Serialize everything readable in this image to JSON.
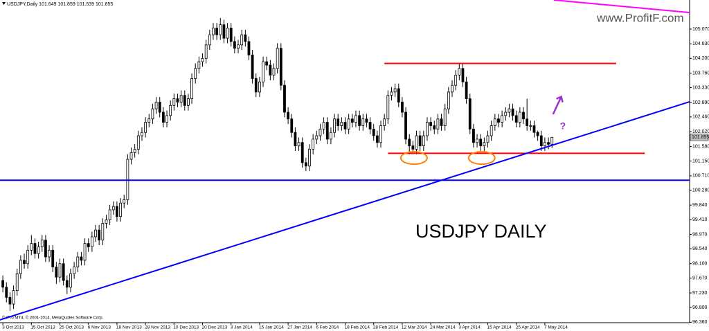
{
  "chart_data": {
    "type": "candlestick",
    "header": "USDJPY,Daily",
    "title": "USDJPY  DAILY",
    "watermark": "www.ProfitF.com",
    "copyright": "© iPro MT4, © 2001-2014, MetaQuotes Software Corp.",
    "annotation": "?",
    "ylim": [
      96.346,
      105.934
    ],
    "xlim": [
      -0.8,
      192.6
    ],
    "yticks": [
      {
        "value": 105.07,
        "label": "105.070"
      },
      {
        "value": 104.63,
        "label": "104.630"
      },
      {
        "value": 104.2,
        "label": "104.200"
      },
      {
        "value": 103.76,
        "label": "103.760"
      },
      {
        "value": 103.33,
        "label": "103.330"
      },
      {
        "value": 102.89,
        "label": "102.890"
      },
      {
        "value": 102.46,
        "label": "102.460"
      },
      {
        "value": 102.02,
        "label": "102.020"
      },
      {
        "value": 101.58,
        "label": "101.580"
      },
      {
        "value": 101.15,
        "label": "101.150"
      },
      {
        "value": 100.71,
        "label": "100.710"
      },
      {
        "value": 100.28,
        "label": "100.280"
      },
      {
        "value": 99.84,
        "label": "99.840"
      },
      {
        "value": 99.41,
        "label": "99.410"
      },
      {
        "value": 98.97,
        "label": "98.970"
      },
      {
        "value": 98.54,
        "label": "98.540"
      },
      {
        "value": 98.1,
        "label": "98.100"
      },
      {
        "value": 97.67,
        "label": "97.670"
      },
      {
        "value": 97.23,
        "label": "97.230"
      },
      {
        "value": 96.8,
        "label": "96.800"
      },
      {
        "value": 96.36,
        "label": "96.360"
      }
    ],
    "categories": [
      "3 Oct 2013",
      null,
      null,
      null,
      null,
      null,
      null,
      null,
      "15 Oct 2013",
      null,
      null,
      null,
      null,
      null,
      null,
      null,
      "25 Oct 2013",
      null,
      null,
      null,
      null,
      null,
      null,
      null,
      "6 Nov 2013",
      null,
      null,
      null,
      null,
      null,
      null,
      null,
      "18 Nov 2013",
      null,
      null,
      null,
      null,
      null,
      null,
      null,
      "28 Nov 2013",
      null,
      null,
      null,
      null,
      null,
      null,
      null,
      "10 Dec 2013",
      null,
      null,
      null,
      null,
      null,
      null,
      null,
      "20 Dec 2013",
      null,
      null,
      null,
      null,
      null,
      null,
      null,
      "3 Jan 2014",
      null,
      null,
      null,
      null,
      null,
      null,
      null,
      "15 Jan 2014",
      null,
      null,
      null,
      null,
      null,
      null,
      null,
      "27 Jan 2014",
      null,
      null,
      null,
      null,
      null,
      null,
      null,
      "6 Feb 2014",
      null,
      null,
      null,
      null,
      null,
      null,
      null,
      "18 Feb 2014",
      null,
      null,
      null,
      null,
      null,
      null,
      null,
      "28 Feb 2014",
      null,
      null,
      null,
      null,
      null,
      null,
      null,
      "12 Mar 2014",
      null,
      null,
      null,
      null,
      null,
      null,
      null,
      "24 Mar 2014",
      null,
      null,
      null,
      null,
      null,
      null,
      null,
      "3 Apr 2014",
      null,
      null,
      null,
      null,
      null,
      null,
      null,
      "15 Apr 2014",
      null,
      null,
      null,
      null,
      null,
      null,
      null,
      "25 Apr 2014",
      null,
      null,
      null,
      null,
      null,
      null,
      null,
      "7 May 2014",
      null,
      null
    ],
    "candles": [
      [
        97.6,
        97.75,
        97.25,
        97.4
      ],
      [
        97.4,
        97.55,
        96.95,
        97.1
      ],
      [
        97.1,
        97.25,
        96.7,
        96.9
      ],
      [
        96.9,
        97.45,
        96.75,
        97.3
      ],
      [
        97.3,
        97.95,
        97.15,
        97.8
      ],
      [
        97.8,
        98.35,
        97.65,
        98.2
      ],
      [
        98.2,
        98.4,
        97.95,
        98.1
      ],
      [
        98.1,
        98.65,
        97.95,
        98.5
      ],
      [
        98.5,
        98.95,
        98.35,
        98.7
      ],
      [
        98.7,
        98.85,
        98.25,
        98.4
      ],
      [
        98.4,
        98.75,
        98.25,
        98.6
      ],
      [
        98.6,
        98.95,
        98.45,
        98.8
      ],
      [
        98.8,
        98.95,
        98.15,
        98.3
      ],
      [
        98.3,
        98.65,
        98.15,
        98.5
      ],
      [
        98.5,
        98.65,
        97.85,
        98.0
      ],
      [
        98.0,
        98.15,
        97.5,
        97.7
      ],
      [
        97.7,
        98.25,
        97.55,
        98.1
      ],
      [
        98.1,
        98.25,
        97.45,
        97.6
      ],
      [
        97.6,
        97.75,
        97.2,
        97.4
      ],
      [
        97.4,
        97.95,
        97.25,
        97.8
      ],
      [
        97.8,
        98.15,
        97.65,
        98.0
      ],
      [
        98.0,
        98.45,
        97.85,
        98.3
      ],
      [
        98.3,
        98.45,
        98.05,
        98.2
      ],
      [
        98.2,
        98.85,
        98.05,
        98.7
      ],
      [
        98.7,
        98.85,
        98.45,
        98.6
      ],
      [
        98.6,
        99.05,
        98.45,
        98.9
      ],
      [
        98.9,
        99.25,
        98.75,
        99.1
      ],
      [
        99.1,
        99.25,
        98.65,
        98.8
      ],
      [
        98.8,
        99.45,
        98.65,
        99.3
      ],
      [
        99.3,
        99.55,
        99.15,
        99.4
      ],
      [
        99.4,
        99.85,
        99.25,
        99.7
      ],
      [
        99.7,
        99.95,
        99.55,
        99.8
      ],
      [
        99.8,
        99.95,
        99.35,
        99.5
      ],
      [
        99.5,
        100.05,
        99.35,
        99.9
      ],
      [
        99.9,
        100.15,
        99.75,
        100.0
      ],
      [
        100.0,
        101.35,
        99.85,
        101.2
      ],
      [
        101.2,
        101.55,
        101.05,
        101.4
      ],
      [
        101.4,
        101.65,
        101.25,
        101.5
      ],
      [
        101.5,
        102.05,
        101.35,
        101.9
      ],
      [
        101.9,
        102.15,
        101.75,
        102.0
      ],
      [
        102.0,
        102.45,
        101.85,
        102.3
      ],
      [
        102.3,
        102.55,
        102.15,
        102.4
      ],
      [
        102.4,
        102.85,
        102.25,
        102.7
      ],
      [
        102.7,
        103.05,
        102.55,
        102.9
      ],
      [
        102.9,
        103.05,
        102.45,
        102.6
      ],
      [
        102.6,
        102.75,
        102.15,
        102.3
      ],
      [
        102.3,
        102.65,
        102.15,
        102.5
      ],
      [
        102.5,
        102.95,
        102.35,
        102.8
      ],
      [
        102.8,
        103.15,
        102.65,
        103.0
      ],
      [
        103.0,
        103.15,
        102.75,
        102.9
      ],
      [
        102.9,
        103.25,
        102.75,
        103.1
      ],
      [
        103.1,
        103.25,
        102.65,
        102.8
      ],
      [
        102.8,
        103.15,
        102.65,
        103.0
      ],
      [
        103.0,
        103.75,
        102.85,
        103.6
      ],
      [
        103.6,
        104.05,
        103.45,
        103.9
      ],
      [
        103.9,
        104.25,
        103.75,
        104.1
      ],
      [
        104.1,
        104.35,
        103.95,
        104.2
      ],
      [
        104.2,
        104.75,
        104.05,
        104.6
      ],
      [
        104.6,
        105.05,
        104.45,
        104.9
      ],
      [
        104.9,
        105.25,
        104.75,
        105.1
      ],
      [
        105.1,
        105.25,
        104.75,
        104.9
      ],
      [
        104.9,
        105.4,
        104.75,
        105.2
      ],
      [
        105.2,
        105.35,
        104.65,
        104.8
      ],
      [
        104.8,
        105.25,
        104.65,
        105.1
      ],
      [
        105.1,
        105.25,
        104.55,
        104.7
      ],
      [
        104.7,
        104.85,
        104.35,
        104.5
      ],
      [
        104.5,
        104.75,
        104.35,
        104.6
      ],
      [
        104.6,
        105.05,
        104.45,
        104.9
      ],
      [
        104.9,
        105.05,
        104.55,
        104.7
      ],
      [
        104.7,
        104.85,
        104.15,
        104.3
      ],
      [
        104.3,
        104.45,
        103.45,
        103.6
      ],
      [
        103.6,
        103.75,
        103.05,
        103.2
      ],
      [
        103.2,
        103.65,
        103.05,
        103.5
      ],
      [
        103.5,
        104.25,
        103.35,
        104.1
      ],
      [
        104.1,
        104.25,
        103.85,
        104.0
      ],
      [
        104.0,
        104.15,
        103.55,
        103.7
      ],
      [
        103.7,
        104.05,
        103.55,
        103.9
      ],
      [
        103.9,
        104.65,
        103.75,
        104.5
      ],
      [
        104.5,
        104.65,
        103.25,
        103.4
      ],
      [
        103.4,
        103.55,
        102.45,
        102.6
      ],
      [
        102.6,
        102.75,
        102.25,
        102.4
      ],
      [
        102.4,
        102.55,
        101.85,
        102.0
      ],
      [
        102.0,
        102.15,
        101.45,
        101.6
      ],
      [
        101.6,
        101.85,
        101.45,
        101.7
      ],
      [
        101.7,
        101.85,
        100.95,
        101.1
      ],
      [
        101.1,
        101.25,
        100.85,
        101.0
      ],
      [
        101.0,
        101.65,
        100.85,
        101.5
      ],
      [
        101.5,
        101.95,
        101.35,
        101.8
      ],
      [
        101.8,
        102.05,
        101.65,
        101.9
      ],
      [
        101.9,
        102.25,
        101.75,
        102.1
      ],
      [
        102.1,
        102.45,
        101.95,
        102.3
      ],
      [
        102.3,
        102.45,
        101.65,
        101.8
      ],
      [
        101.8,
        102.15,
        101.65,
        102.0
      ],
      [
        102.0,
        102.55,
        101.85,
        102.4
      ],
      [
        102.4,
        102.55,
        102.05,
        102.2
      ],
      [
        102.2,
        102.45,
        102.05,
        102.3
      ],
      [
        102.3,
        102.45,
        101.95,
        102.1
      ],
      [
        102.1,
        102.55,
        101.95,
        102.4
      ],
      [
        102.4,
        102.55,
        102.15,
        102.3
      ],
      [
        102.3,
        102.65,
        102.15,
        102.5
      ],
      [
        102.5,
        102.65,
        102.05,
        102.2
      ],
      [
        102.2,
        102.55,
        102.05,
        102.4
      ],
      [
        102.4,
        102.55,
        102.15,
        102.3
      ],
      [
        102.3,
        102.45,
        101.95,
        102.1
      ],
      [
        102.1,
        102.25,
        101.75,
        101.9
      ],
      [
        101.9,
        102.05,
        101.55,
        101.7
      ],
      [
        101.7,
        102.35,
        101.55,
        102.2
      ],
      [
        102.2,
        102.55,
        102.05,
        102.4
      ],
      [
        102.4,
        103.25,
        102.25,
        103.1
      ],
      [
        103.1,
        103.35,
        102.95,
        103.2
      ],
      [
        103.2,
        103.45,
        103.05,
        103.3
      ],
      [
        103.3,
        103.45,
        102.75,
        102.9
      ],
      [
        102.9,
        103.05,
        102.45,
        102.6
      ],
      [
        102.6,
        102.75,
        101.65,
        101.8
      ],
      [
        101.8,
        101.95,
        101.35,
        101.6
      ],
      [
        101.6,
        101.75,
        101.35,
        101.5
      ],
      [
        101.5,
        102.05,
        101.35,
        101.9
      ],
      [
        101.9,
        102.05,
        101.45,
        101.6
      ],
      [
        101.6,
        102.05,
        101.45,
        101.9
      ],
      [
        101.9,
        102.45,
        101.75,
        102.3
      ],
      [
        102.3,
        102.45,
        102.05,
        102.2
      ],
      [
        102.2,
        102.35,
        101.95,
        102.1
      ],
      [
        102.1,
        102.55,
        101.95,
        102.4
      ],
      [
        102.4,
        102.55,
        102.05,
        102.2
      ],
      [
        102.2,
        102.85,
        102.05,
        102.7
      ],
      [
        102.7,
        103.35,
        102.55,
        103.2
      ],
      [
        103.2,
        103.55,
        103.05,
        103.4
      ],
      [
        103.4,
        103.85,
        103.25,
        103.7
      ],
      [
        103.7,
        104.05,
        103.55,
        103.9
      ],
      [
        103.9,
        104.05,
        103.35,
        103.5
      ],
      [
        103.5,
        103.65,
        102.85,
        103.0
      ],
      [
        103.0,
        103.15,
        101.95,
        102.1
      ],
      [
        102.1,
        102.25,
        101.55,
        101.7
      ],
      [
        101.7,
        101.95,
        101.55,
        101.8
      ],
      [
        101.8,
        101.95,
        101.45,
        101.6
      ],
      [
        101.6,
        101.85,
        101.45,
        101.7
      ],
      [
        101.7,
        102.05,
        101.55,
        101.9
      ],
      [
        101.9,
        102.35,
        101.75,
        102.2
      ],
      [
        102.2,
        102.55,
        102.05,
        102.4
      ],
      [
        102.4,
        102.55,
        102.15,
        102.3
      ],
      [
        102.3,
        102.65,
        102.15,
        102.5
      ],
      [
        102.5,
        102.75,
        102.35,
        102.6
      ],
      [
        102.6,
        102.85,
        102.45,
        102.7
      ],
      [
        102.7,
        102.85,
        102.35,
        102.5
      ],
      [
        102.5,
        102.65,
        102.15,
        102.3
      ],
      [
        102.3,
        102.75,
        102.15,
        102.6
      ],
      [
        102.6,
        102.75,
        102.25,
        102.4
      ],
      [
        102.4,
        103.0,
        102.05,
        102.2
      ],
      [
        102.2,
        102.35,
        102.05,
        102.2
      ],
      [
        102.2,
        102.35,
        101.85,
        102.0
      ],
      [
        102.0,
        102.05,
        101.75,
        101.9
      ],
      [
        101.9,
        102.05,
        101.45,
        101.6
      ],
      [
        101.6,
        101.85,
        101.45,
        101.7
      ],
      [
        101.7,
        101.85,
        101.5,
        101.649
      ],
      [
        101.649,
        101.859,
        101.539,
        101.855
      ]
    ],
    "levels": [
      {
        "value": 104.05,
        "color": "#ff0000",
        "from": 107,
        "to": 172
      },
      {
        "value": 101.38,
        "color": "#ff0000",
        "from": 108,
        "to": 180
      },
      {
        "value": 100.58,
        "color": "#0000ff",
        "from": -0.8,
        "to": 192.6
      }
    ],
    "trendlines": [
      {
        "from": [
          -0.8,
          96.43
        ],
        "to": [
          192.6,
          102.91
        ],
        "color": "#0000ff"
      },
      {
        "from": [
          154.5,
          105.934
        ],
        "to": [
          192.6,
          105.56
        ],
        "color": "#ff00ff"
      }
    ],
    "arrow": {
      "from": [
        154.3,
        102.54
      ],
      "to": [
        156.6,
        103.06
      ],
      "color": "#9933cc"
    },
    "circles": [
      {
        "x": 115.3,
        "y": 101.24
      },
      {
        "x": 134.3,
        "y": 101.24
      }
    ]
  }
}
